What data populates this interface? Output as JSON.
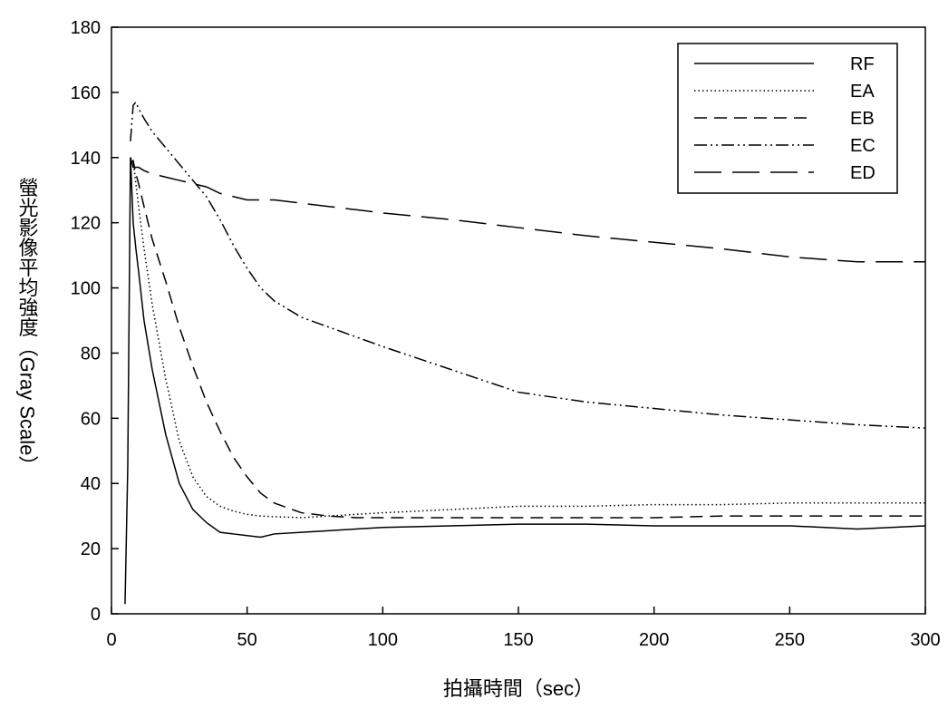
{
  "chart_data": {
    "type": "line",
    "x_label": "拍攝時間（sec）",
    "y_label": "螢光影像平均強度（Gray Scale）",
    "x": [
      5,
      6,
      7,
      8,
      9,
      10,
      12,
      15,
      20,
      25,
      30,
      35,
      40,
      45,
      50,
      55,
      60,
      70,
      80,
      90,
      100,
      125,
      150,
      175,
      200,
      225,
      250,
      275,
      300
    ],
    "series": [
      {
        "name": "RF",
        "color": "#000000",
        "dash": "solid",
        "values": [
          3,
          45,
          140,
          120,
          112,
          105,
          90,
          75,
          55,
          40,
          32,
          28,
          25,
          24.5,
          24,
          23.5,
          24.5,
          25,
          25.5,
          26,
          26.5,
          27,
          27.5,
          27.5,
          27,
          27,
          27,
          26,
          27
        ]
      },
      {
        "name": "EA",
        "color": "#000000",
        "dash": "dotted",
        "values": [
          null,
          null,
          140,
          139,
          132,
          125,
          112,
          95,
          72,
          53,
          42,
          36,
          33,
          31.5,
          30.5,
          30,
          29.8,
          29.5,
          30,
          30.5,
          31,
          32,
          33,
          33,
          33.5,
          33.5,
          34,
          34,
          34
        ]
      },
      {
        "name": "EB",
        "color": "#000000",
        "dash": "dashed",
        "values": [
          null,
          null,
          138,
          139,
          135,
          132,
          125,
          115,
          102,
          88,
          76,
          65,
          56,
          48,
          42,
          37,
          34,
          31,
          30,
          29.5,
          29.5,
          29.5,
          29.5,
          29.5,
          29.5,
          30,
          30,
          30,
          30
        ]
      },
      {
        "name": "EC",
        "color": "#000000",
        "dash": "dashdotdot",
        "values": [
          null,
          null,
          145,
          156,
          157,
          155,
          152,
          148,
          143,
          138,
          133,
          128,
          121,
          113,
          106,
          100,
          96,
          91,
          88,
          85,
          82,
          75,
          68,
          65,
          63,
          61,
          59.5,
          58,
          57
        ]
      },
      {
        "name": "ED",
        "color": "#000000",
        "dash": "longdash",
        "values": [
          null,
          null,
          140,
          137,
          137,
          137,
          136,
          135,
          134,
          133,
          132,
          131,
          129,
          128,
          127,
          127,
          127,
          126,
          125,
          124,
          123,
          121,
          118.5,
          116,
          114,
          112,
          109.5,
          108,
          108
        ]
      }
    ],
    "xlim": [
      0,
      300
    ],
    "xticks": [
      0,
      50,
      100,
      150,
      200,
      250,
      300
    ],
    "ylim": [
      0,
      180
    ],
    "yticks": [
      0,
      20,
      40,
      60,
      80,
      100,
      120,
      140,
      160,
      180
    ],
    "grid": false,
    "legend": "upper right"
  }
}
